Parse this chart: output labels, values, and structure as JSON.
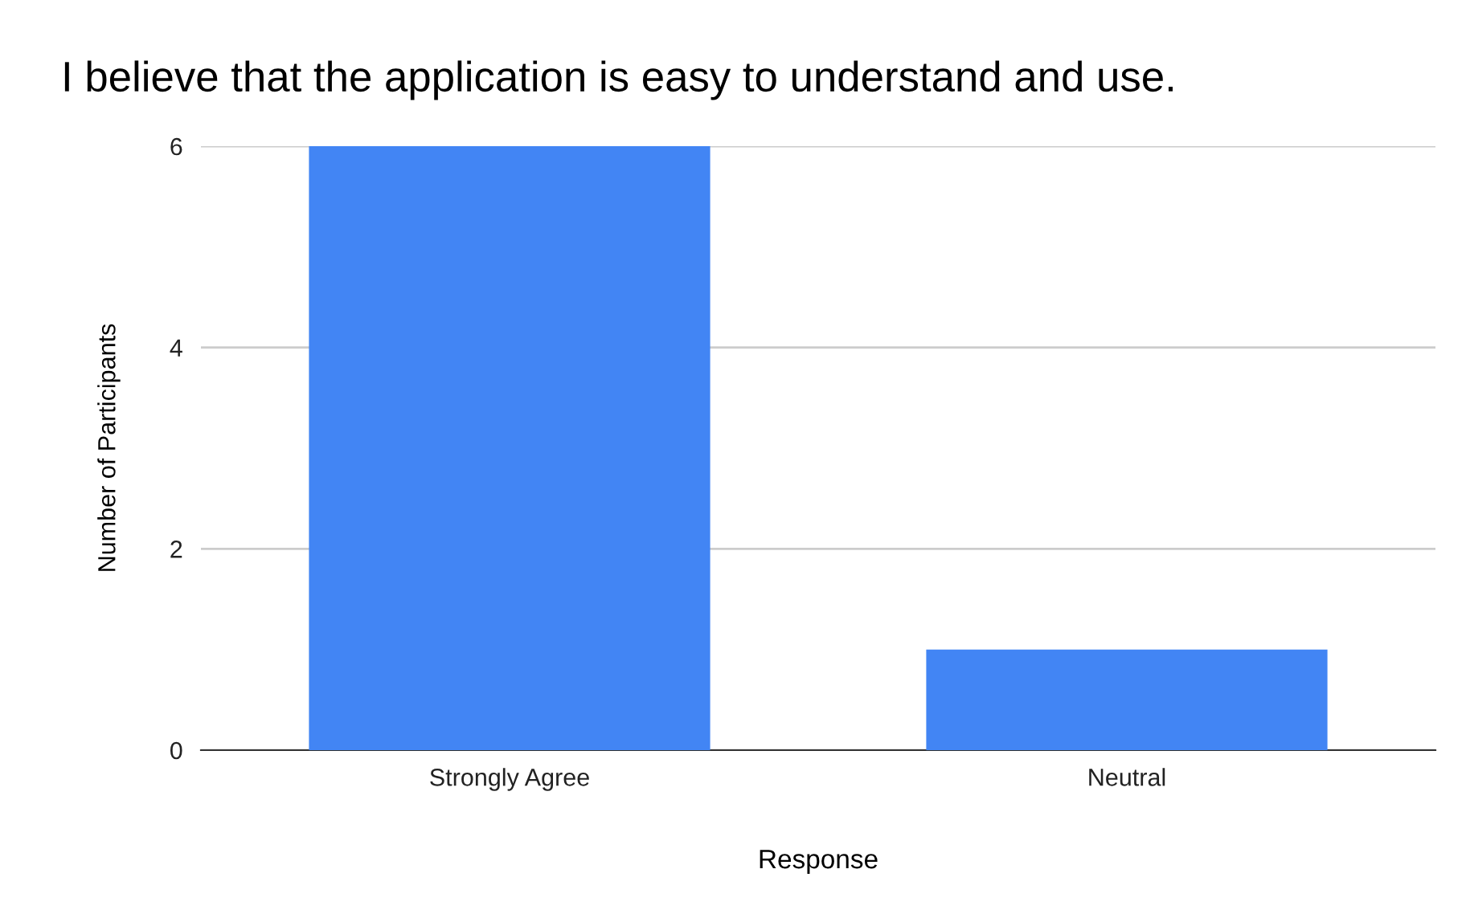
{
  "chart_data": {
    "type": "bar",
    "title": "I believe that the application is easy to understand and use.",
    "xlabel": "Response",
    "ylabel": "Number of Participants",
    "categories": [
      "Strongly Agree",
      "Neutral"
    ],
    "values": [
      6,
      1
    ],
    "color": "#4285f4",
    "ylim": [
      0,
      6
    ],
    "yticks": [
      0,
      2,
      4,
      6
    ],
    "grid": "y"
  }
}
